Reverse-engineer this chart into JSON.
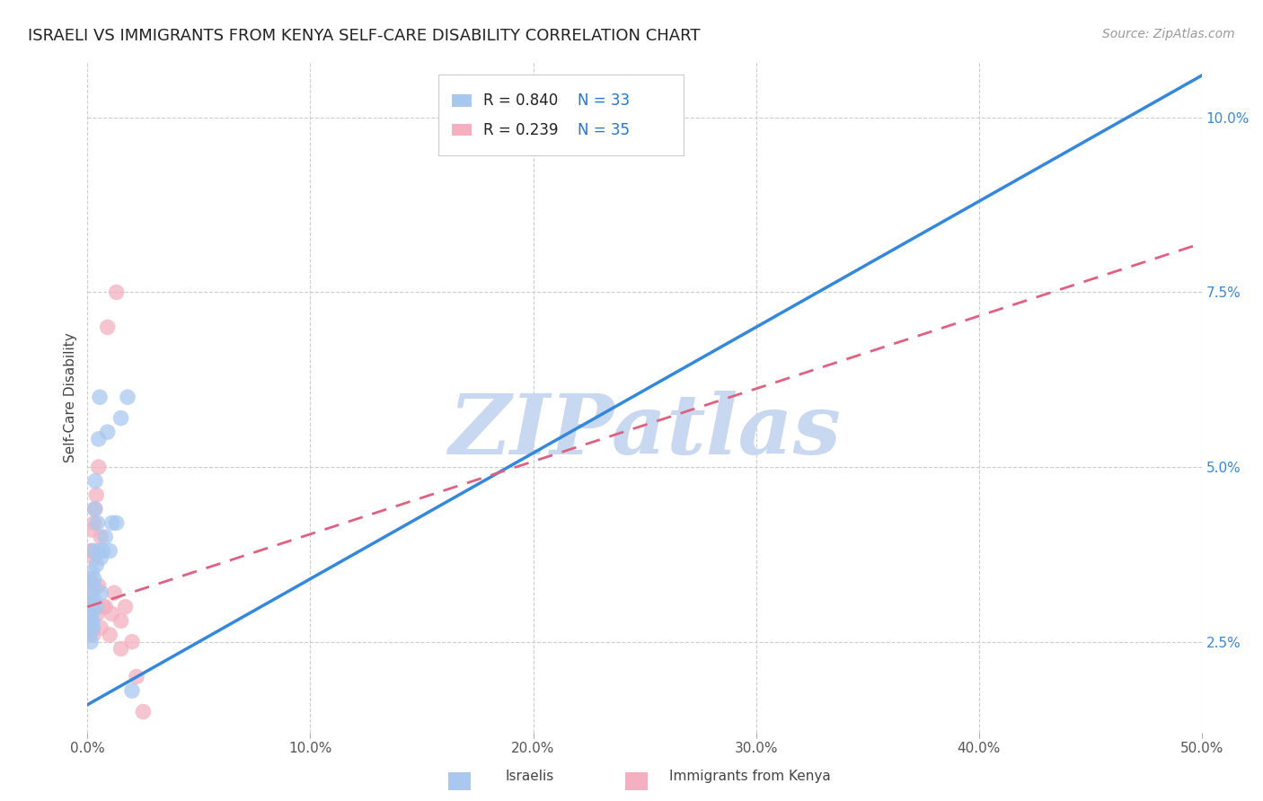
{
  "title": "ISRAELI VS IMMIGRANTS FROM KENYA SELF-CARE DISABILITY CORRELATION CHART",
  "source": "Source: ZipAtlas.com",
  "xlabel_israelis": "Israelis",
  "xlabel_kenya": "Immigrants from Kenya",
  "ylabel": "Self-Care Disability",
  "watermark": "ZIPatlas",
  "xmin": 0.0,
  "xmax": 0.5,
  "ymin": 0.012,
  "ymax": 0.108,
  "yticks": [
    0.025,
    0.05,
    0.075,
    0.1
  ],
  "ytick_labels": [
    "2.5%",
    "5.0%",
    "7.5%",
    "10.0%"
  ],
  "xticks": [
    0.0,
    0.1,
    0.2,
    0.3,
    0.4,
    0.5
  ],
  "xtick_labels": [
    "0.0%",
    "10.0%",
    "20.0%",
    "30.0%",
    "40.0%",
    "50.0%"
  ],
  "legend_r_israelis": "R = 0.840",
  "legend_n_israelis": "N = 33",
  "legend_r_kenya": "R = 0.239",
  "legend_n_kenya": "N = 35",
  "color_israelis": "#a8c8f0",
  "color_kenya": "#f4b0c0",
  "line_color_israelis": "#3388dd",
  "line_color_kenya": "#e06080",
  "background_color": "#ffffff",
  "grid_color": "#cccccc",
  "title_color": "#222222",
  "source_color": "#999999",
  "legend_r_color": "#111111",
  "legend_n_color": "#2277cc",
  "watermark_color": "#c8d8f0",
  "israelis_line_start_y": 0.016,
  "israelis_line_end_y": 0.106,
  "kenya_line_start_y": 0.03,
  "kenya_line_end_y": 0.082,
  "israelis_x": [
    0.0008,
    0.001,
    0.0012,
    0.0015,
    0.0015,
    0.0018,
    0.002,
    0.002,
    0.0022,
    0.0025,
    0.0025,
    0.003,
    0.003,
    0.003,
    0.0032,
    0.0035,
    0.004,
    0.004,
    0.0045,
    0.005,
    0.005,
    0.0055,
    0.006,
    0.006,
    0.007,
    0.008,
    0.009,
    0.01,
    0.011,
    0.013,
    0.015,
    0.018,
    0.02
  ],
  "israelis_y": [
    0.026,
    0.027,
    0.03,
    0.028,
    0.025,
    0.029,
    0.032,
    0.035,
    0.028,
    0.033,
    0.027,
    0.038,
    0.031,
    0.034,
    0.044,
    0.048,
    0.03,
    0.036,
    0.042,
    0.038,
    0.054,
    0.06,
    0.032,
    0.037,
    0.038,
    0.04,
    0.055,
    0.038,
    0.042,
    0.042,
    0.057,
    0.06,
    0.018
  ],
  "kenya_x": [
    0.0005,
    0.0008,
    0.001,
    0.001,
    0.0012,
    0.0015,
    0.0015,
    0.002,
    0.002,
    0.0022,
    0.0025,
    0.003,
    0.003,
    0.003,
    0.0035,
    0.004,
    0.004,
    0.0045,
    0.005,
    0.005,
    0.006,
    0.006,
    0.007,
    0.008,
    0.009,
    0.01,
    0.011,
    0.012,
    0.013,
    0.015,
    0.015,
    0.017,
    0.02,
    0.022,
    0.025
  ],
  "kenya_y": [
    0.026,
    0.029,
    0.032,
    0.026,
    0.034,
    0.03,
    0.038,
    0.027,
    0.038,
    0.041,
    0.026,
    0.033,
    0.042,
    0.037,
    0.044,
    0.03,
    0.046,
    0.029,
    0.033,
    0.05,
    0.04,
    0.027,
    0.03,
    0.03,
    0.07,
    0.026,
    0.029,
    0.032,
    0.075,
    0.024,
    0.028,
    0.03,
    0.025,
    0.02,
    0.015
  ]
}
